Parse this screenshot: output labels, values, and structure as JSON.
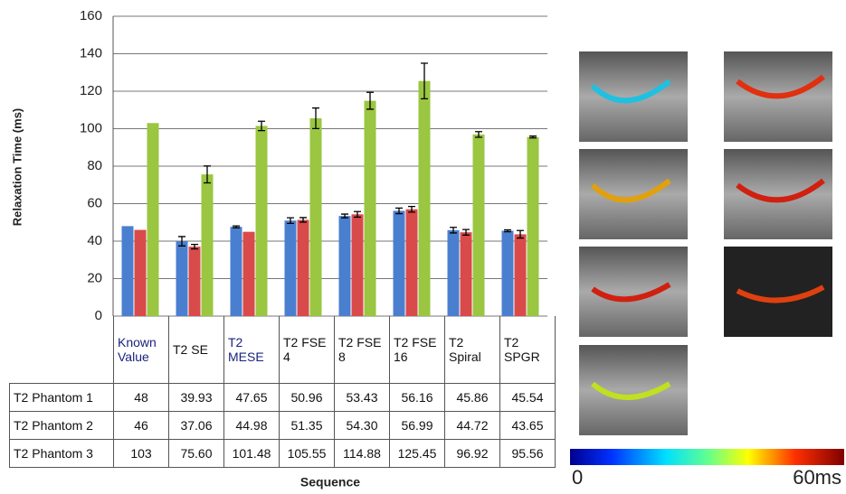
{
  "chart_data": {
    "type": "bar",
    "x_label": "Sequence",
    "y_label": "Relaxation Time (ms)",
    "categories": [
      "Known Value",
      "T2 SE",
      "T2 MESE",
      "T2 FSE 4",
      "T2 FSE 8",
      "T2 FSE 16",
      "T2 Spiral",
      "T2 SPGR"
    ],
    "series": [
      {
        "name": "T2 Phantom 1",
        "color": "#4a7fd0",
        "values": [
          48,
          39.93,
          47.65,
          50.96,
          53.43,
          56.16,
          45.86,
          45.54
        ],
        "value_labels": [
          "48",
          "39.93",
          "47.65",
          "50.96",
          "53.43",
          "56.16",
          "45.86",
          "45.54"
        ],
        "errors": [
          null,
          2.5,
          0.5,
          1.5,
          1,
          1.5,
          1.5,
          0.5
        ]
      },
      {
        "name": "T2 Phantom 2",
        "color": "#d94a4a",
        "values": [
          46,
          37.06,
          44.98,
          51.35,
          54.3,
          56.99,
          44.72,
          43.65
        ],
        "value_labels": [
          "46",
          "37.06",
          "44.98",
          "51.35",
          "54.30",
          "56.99",
          "44.72",
          "43.65"
        ],
        "errors": [
          null,
          1.2,
          null,
          1.2,
          1.5,
          1.5,
          1.5,
          2
        ]
      },
      {
        "name": "T2 Phantom 3",
        "color": "#9ac641",
        "values": [
          103,
          75.6,
          101.48,
          105.55,
          114.88,
          125.45,
          96.92,
          95.56
        ],
        "value_labels": [
          "103",
          "75.60",
          "101.48",
          "105.55",
          "114.88",
          "125.45",
          "96.92",
          "95.56"
        ],
        "errors": [
          null,
          4.5,
          2.5,
          5.5,
          4.5,
          9.5,
          1.5,
          0.5
        ]
      }
    ],
    "ylim": [
      0,
      160
    ],
    "yticks": [
      0,
      20,
      40,
      60,
      80,
      100,
      120,
      140,
      160
    ],
    "grid": true,
    "colorbar": {
      "min_label": "0",
      "max_label": "60ms"
    }
  }
}
